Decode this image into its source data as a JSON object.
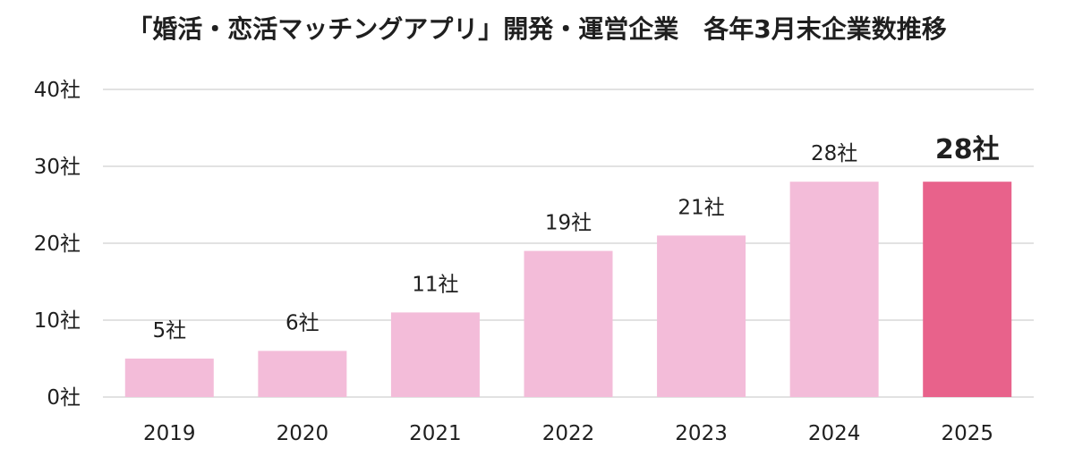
{
  "chart_data": {
    "type": "bar",
    "title": "「婚活・恋活マッチングアプリ」開発・運営企業　各年3月末企業数推移",
    "categories": [
      "2019",
      "2020",
      "2021",
      "2022",
      "2023",
      "2024",
      "2025"
    ],
    "values": [
      5,
      6,
      11,
      19,
      21,
      28,
      28
    ],
    "data_labels": [
      "5社",
      "6社",
      "11社",
      "19社",
      "21社",
      "28社",
      "28社"
    ],
    "highlight_index": 6,
    "ylim": [
      0,
      40
    ],
    "yticks": [
      0,
      10,
      20,
      30,
      40
    ],
    "ytick_labels": [
      "0社",
      "10社",
      "20社",
      "30社",
      "40社"
    ],
    "xlabel": "",
    "ylabel": "",
    "grid": true,
    "colors": {
      "bar": "#f3bcd9",
      "bar_highlight": "#e8628b",
      "gridline": "#d9d9d9",
      "text": "#1f1f1f"
    }
  }
}
